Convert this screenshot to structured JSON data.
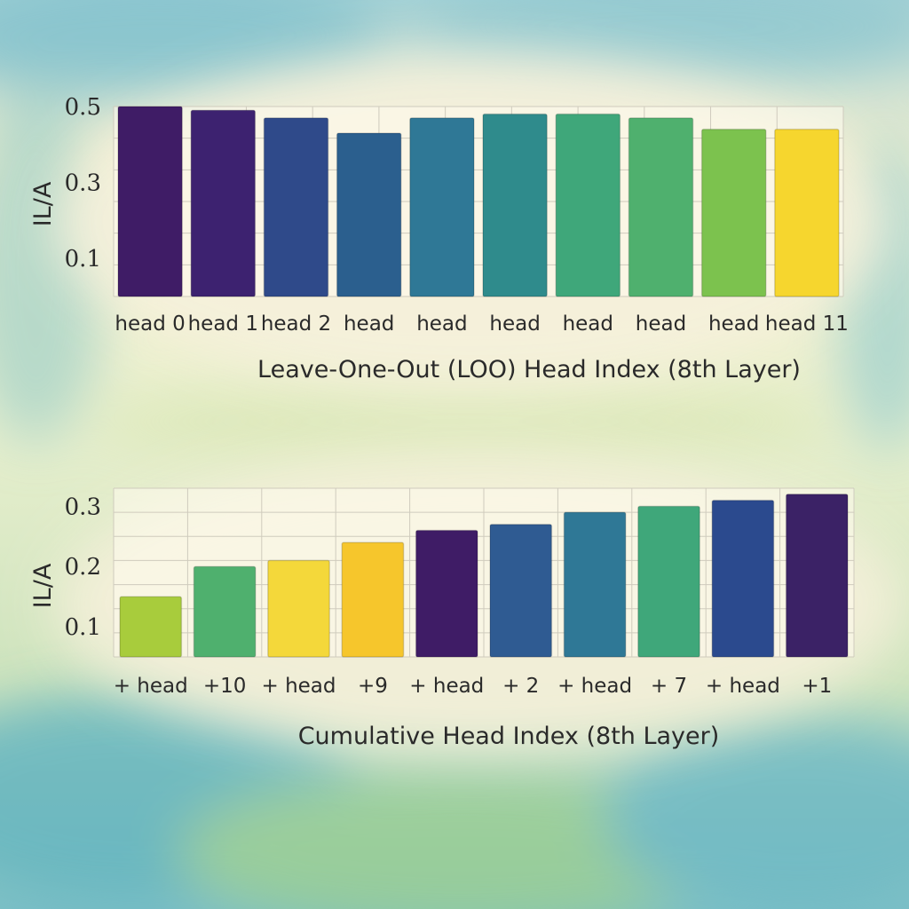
{
  "chart_data": [
    {
      "type": "bar",
      "categories": [
        "head 0",
        "head 1",
        "head 2",
        "head",
        "head",
        "head",
        "head",
        "head",
        "head",
        "head 11"
      ],
      "values": [
        0.5,
        0.49,
        0.47,
        0.43,
        0.47,
        0.48,
        0.48,
        0.47,
        0.44,
        0.44
      ],
      "colors": [
        "#3f1c66",
        "#3d2270",
        "#2f4a8a",
        "#2b5f8e",
        "#2f7896",
        "#2f8b8c",
        "#3fa77a",
        "#4fb06e",
        "#7cc24e",
        "#f6d62e"
      ],
      "ylabel": "IL/A",
      "xlabel": "Leave-One-Out (LOO) Head Index (8th Layer)",
      "yticks": [
        "0.1",
        "0.3",
        "0.5"
      ],
      "ylim": [
        0,
        0.5
      ],
      "grid": true
    },
    {
      "type": "bar",
      "categories": [
        "+ head",
        "+10",
        "+ head",
        "+9",
        "+ head",
        "+ 2",
        "+ head",
        "+ 7",
        "+ head",
        "+1"
      ],
      "values": [
        0.15,
        0.2,
        0.21,
        0.24,
        0.26,
        0.27,
        0.29,
        0.3,
        0.31,
        0.32
      ],
      "colors": [
        "#a8cc3c",
        "#4fb06e",
        "#f4d83a",
        "#f6c62c",
        "#3f1c66",
        "#2f5b92",
        "#2f7896",
        "#3fa77a",
        "#2b4a8e",
        "#3b2266"
      ],
      "ylabel": "IL/A",
      "xlabel": "Cumulative Head Index (8th Layer)",
      "yticks": [
        "0.1",
        "0.2",
        "0.3"
      ],
      "ylim": [
        0.05,
        0.33
      ],
      "grid": true
    }
  ]
}
